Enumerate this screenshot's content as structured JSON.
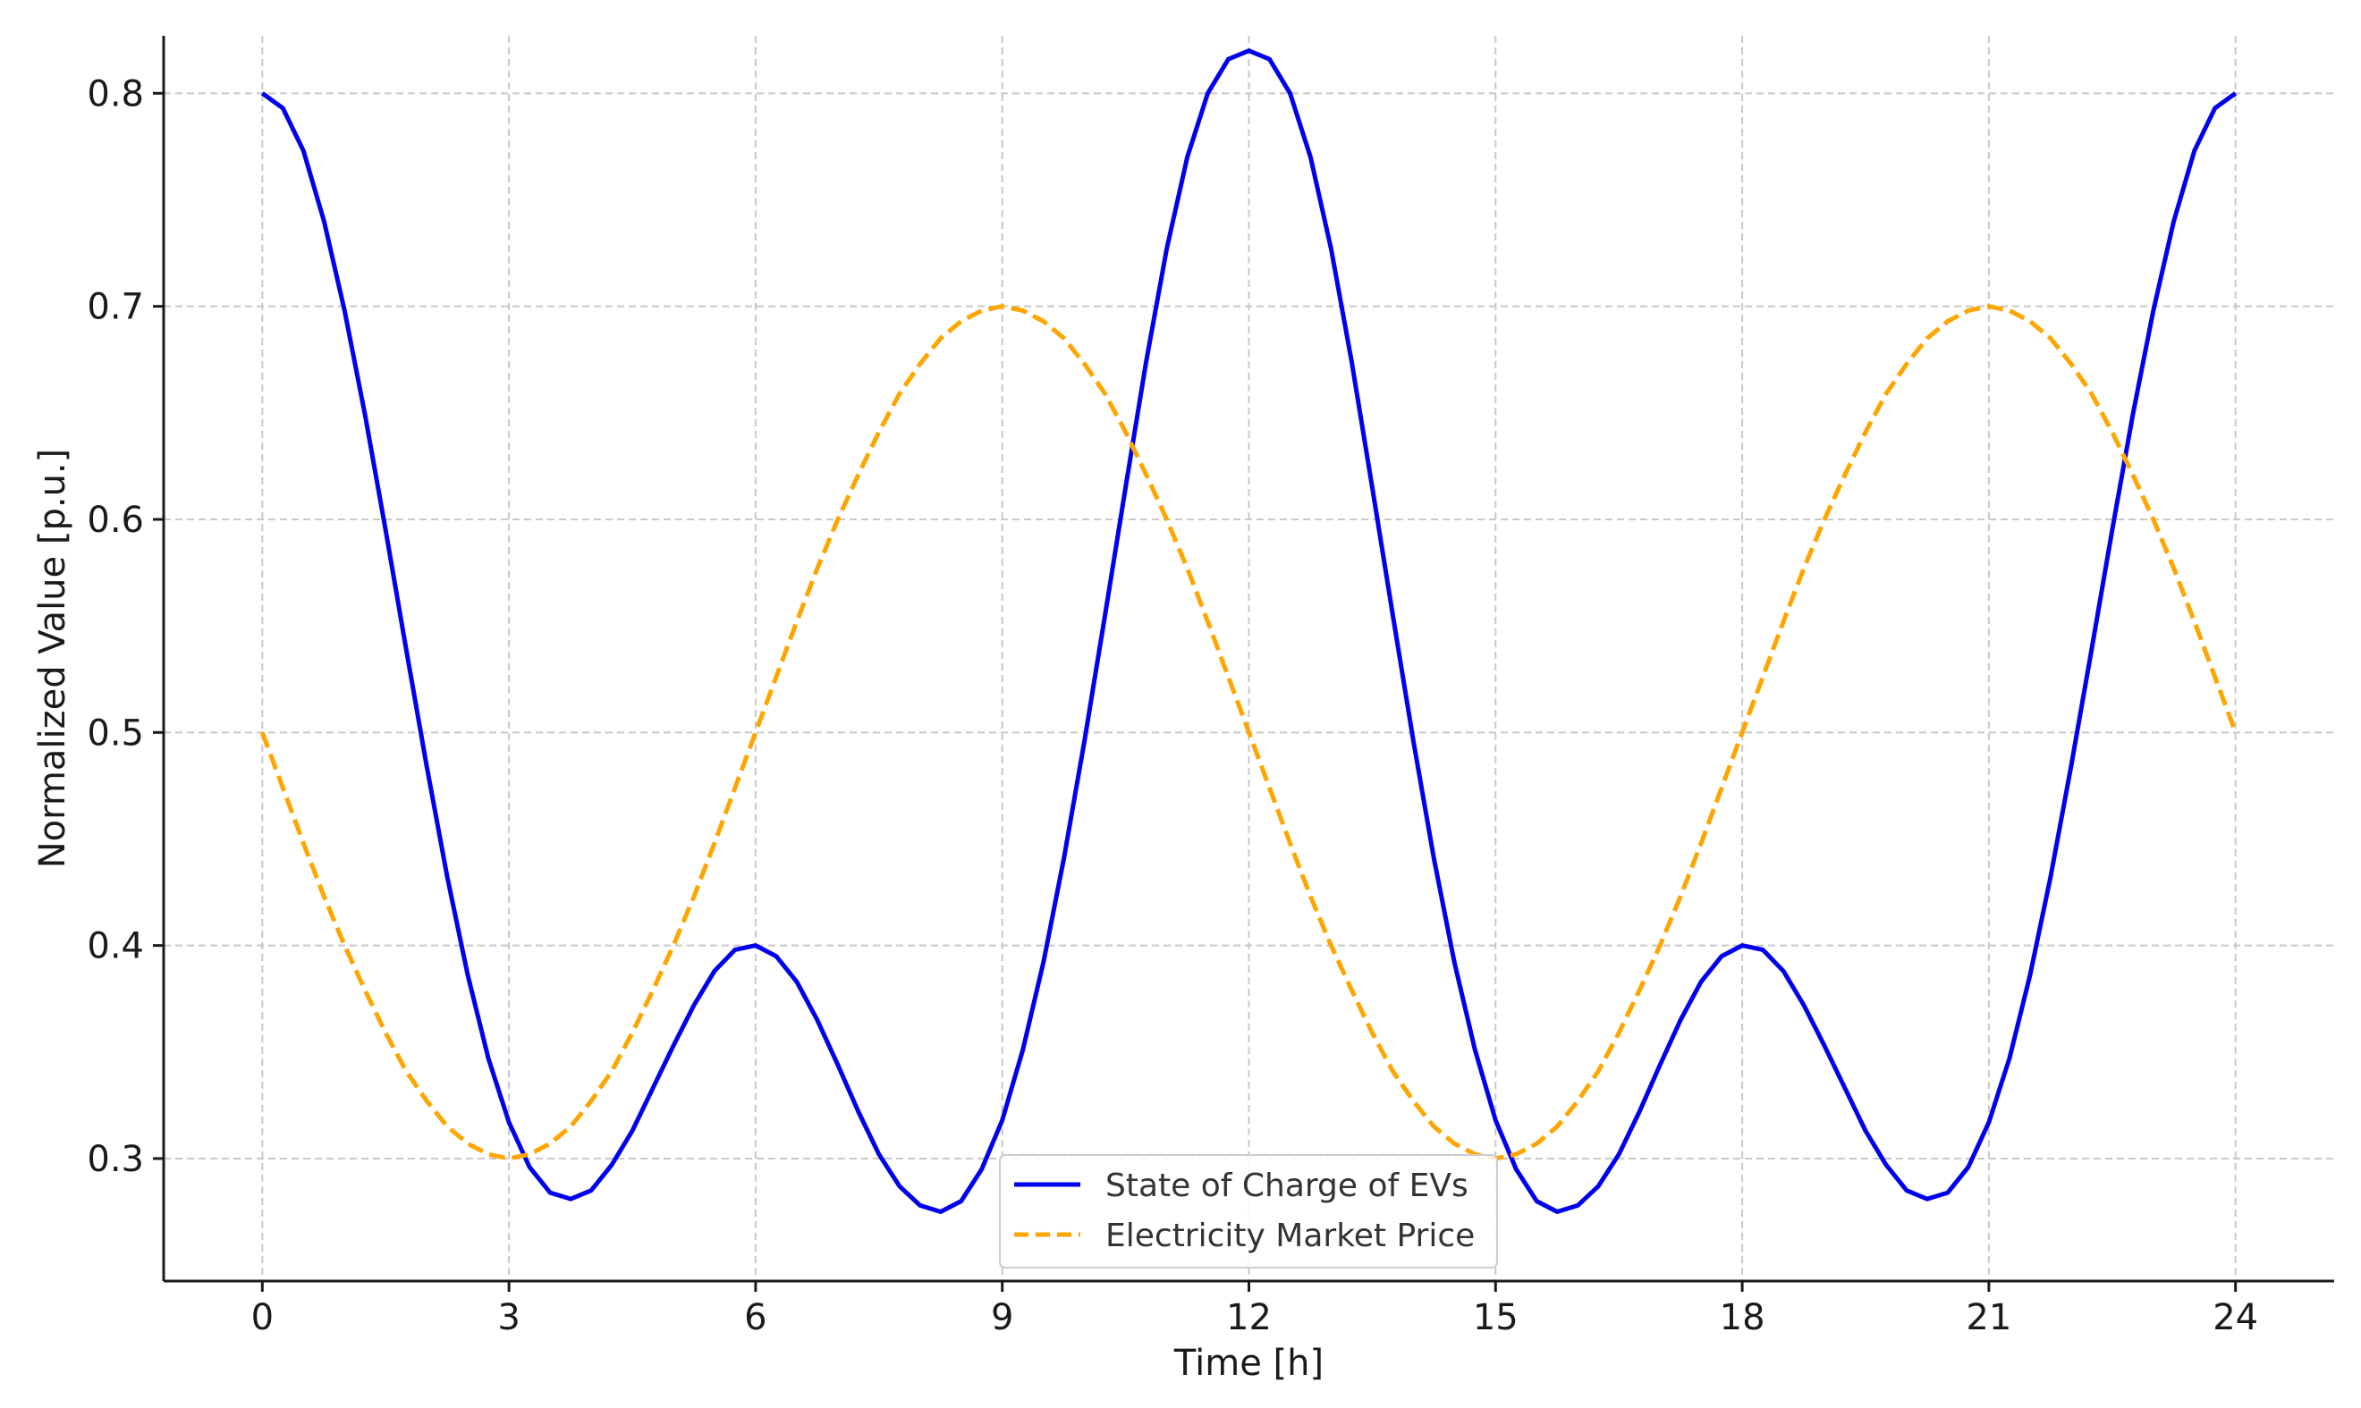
{
  "chart_data": {
    "type": "line",
    "title": "",
    "xlabel": "Time [h]",
    "ylabel": "Normalized Value [p.u.]",
    "xlim": [
      -1.2,
      25.2
    ],
    "ylim": [
      0.2425,
      0.827
    ],
    "xticks": [
      0,
      3,
      6,
      9,
      12,
      15,
      18,
      21,
      24
    ],
    "xtick_labels": [
      "0",
      "3",
      "6",
      "9",
      "12",
      "15",
      "18",
      "21",
      "24"
    ],
    "yticks": [
      0.3,
      0.4,
      0.5,
      0.6,
      0.7,
      0.8
    ],
    "ytick_labels": [
      "0.3",
      "0.4",
      "0.5",
      "0.6",
      "0.7",
      "0.8"
    ],
    "grid": true,
    "legend_position": "bottom-center",
    "series": [
      {
        "name": "State of Charge of EVs",
        "color": "#0000ee",
        "line_style": "solid",
        "x": [
          0,
          0.25,
          0.5,
          0.75,
          1,
          1.25,
          1.5,
          1.75,
          2,
          2.25,
          2.5,
          2.75,
          3,
          3.25,
          3.5,
          3.75,
          4,
          4.25,
          4.5,
          4.75,
          5,
          5.25,
          5.5,
          5.75,
          6,
          6.25,
          6.5,
          6.75,
          7,
          7.25,
          7.5,
          7.75,
          8,
          8.25,
          8.5,
          8.75,
          9,
          9.25,
          9.5,
          9.75,
          10,
          10.25,
          10.5,
          10.75,
          11,
          11.25,
          11.5,
          11.75,
          12,
          12.25,
          12.5,
          12.75,
          13,
          13.25,
          13.5,
          13.75,
          14,
          14.25,
          14.5,
          14.75,
          15,
          15.25,
          15.5,
          15.75,
          16,
          16.25,
          16.5,
          16.75,
          17,
          17.25,
          17.5,
          17.75,
          18,
          18.25,
          18.5,
          18.75,
          19,
          19.25,
          19.5,
          19.75,
          20,
          20.25,
          20.5,
          20.75,
          21,
          21.25,
          21.5,
          21.75,
          22,
          22.25,
          22.5,
          22.75,
          23,
          23.25,
          23.5,
          23.75,
          24
        ],
        "y": [
          0.8,
          0.793,
          0.773,
          0.74,
          0.698,
          0.649,
          0.595,
          0.539,
          0.484,
          0.432,
          0.386,
          0.347,
          0.317,
          0.296,
          0.284,
          0.281,
          0.285,
          0.297,
          0.313,
          0.333,
          0.353,
          0.372,
          0.388,
          0.398,
          0.4,
          0.395,
          0.383,
          0.365,
          0.344,
          0.322,
          0.302,
          0.287,
          0.278,
          0.275,
          0.28,
          0.295,
          0.318,
          0.351,
          0.392,
          0.441,
          0.496,
          0.555,
          0.615,
          0.674,
          0.727,
          0.77,
          0.8,
          0.816,
          0.82,
          0.816,
          0.8,
          0.77,
          0.727,
          0.674,
          0.615,
          0.555,
          0.496,
          0.441,
          0.392,
          0.351,
          0.318,
          0.295,
          0.28,
          0.275,
          0.278,
          0.287,
          0.302,
          0.322,
          0.344,
          0.365,
          0.383,
          0.395,
          0.4,
          0.398,
          0.388,
          0.372,
          0.353,
          0.333,
          0.313,
          0.297,
          0.285,
          0.281,
          0.284,
          0.296,
          0.317,
          0.347,
          0.386,
          0.432,
          0.484,
          0.539,
          0.595,
          0.649,
          0.698,
          0.74,
          0.773,
          0.793,
          0.8
        ]
      },
      {
        "name": "Electricity Market Price",
        "color": "#ffa500",
        "line_style": "dashed",
        "x": [
          0,
          0.25,
          0.5,
          0.75,
          1,
          1.25,
          1.5,
          1.75,
          2,
          2.25,
          2.5,
          2.75,
          3,
          3.25,
          3.5,
          3.75,
          4,
          4.25,
          4.5,
          4.75,
          5,
          5.25,
          5.5,
          5.75,
          6,
          6.25,
          6.5,
          6.75,
          7,
          7.25,
          7.5,
          7.75,
          8,
          8.25,
          8.5,
          8.75,
          9,
          9.25,
          9.5,
          9.75,
          10,
          10.25,
          10.5,
          10.75,
          11,
          11.25,
          11.5,
          11.75,
          12,
          12.25,
          12.5,
          12.75,
          13,
          13.25,
          13.5,
          13.75,
          14,
          14.25,
          14.5,
          14.75,
          15,
          15.25,
          15.5,
          15.75,
          16,
          16.25,
          16.5,
          16.75,
          17,
          17.25,
          17.5,
          17.75,
          18,
          18.25,
          18.5,
          18.75,
          19,
          19.25,
          19.5,
          19.75,
          20,
          20.25,
          20.5,
          20.75,
          21,
          21.25,
          21.5,
          21.75,
          22,
          22.25,
          22.5,
          22.75,
          23,
          23.25,
          23.5,
          23.75,
          24
        ],
        "y": [
          0.5,
          0.474,
          0.448,
          0.423,
          0.4,
          0.379,
          0.359,
          0.341,
          0.327,
          0.315,
          0.307,
          0.302,
          0.3,
          0.302,
          0.307,
          0.315,
          0.327,
          0.341,
          0.359,
          0.379,
          0.4,
          0.423,
          0.448,
          0.474,
          0.5,
          0.526,
          0.552,
          0.577,
          0.6,
          0.621,
          0.641,
          0.659,
          0.673,
          0.685,
          0.693,
          0.698,
          0.7,
          0.698,
          0.693,
          0.685,
          0.673,
          0.659,
          0.641,
          0.621,
          0.6,
          0.577,
          0.552,
          0.526,
          0.5,
          0.474,
          0.448,
          0.423,
          0.4,
          0.379,
          0.359,
          0.341,
          0.327,
          0.315,
          0.307,
          0.302,
          0.3,
          0.302,
          0.307,
          0.315,
          0.327,
          0.341,
          0.359,
          0.379,
          0.4,
          0.423,
          0.448,
          0.474,
          0.5,
          0.526,
          0.552,
          0.577,
          0.6,
          0.621,
          0.641,
          0.659,
          0.673,
          0.685,
          0.693,
          0.698,
          0.7,
          0.698,
          0.693,
          0.685,
          0.673,
          0.659,
          0.641,
          0.621,
          0.6,
          0.577,
          0.552,
          0.526,
          0.5
        ]
      }
    ]
  }
}
